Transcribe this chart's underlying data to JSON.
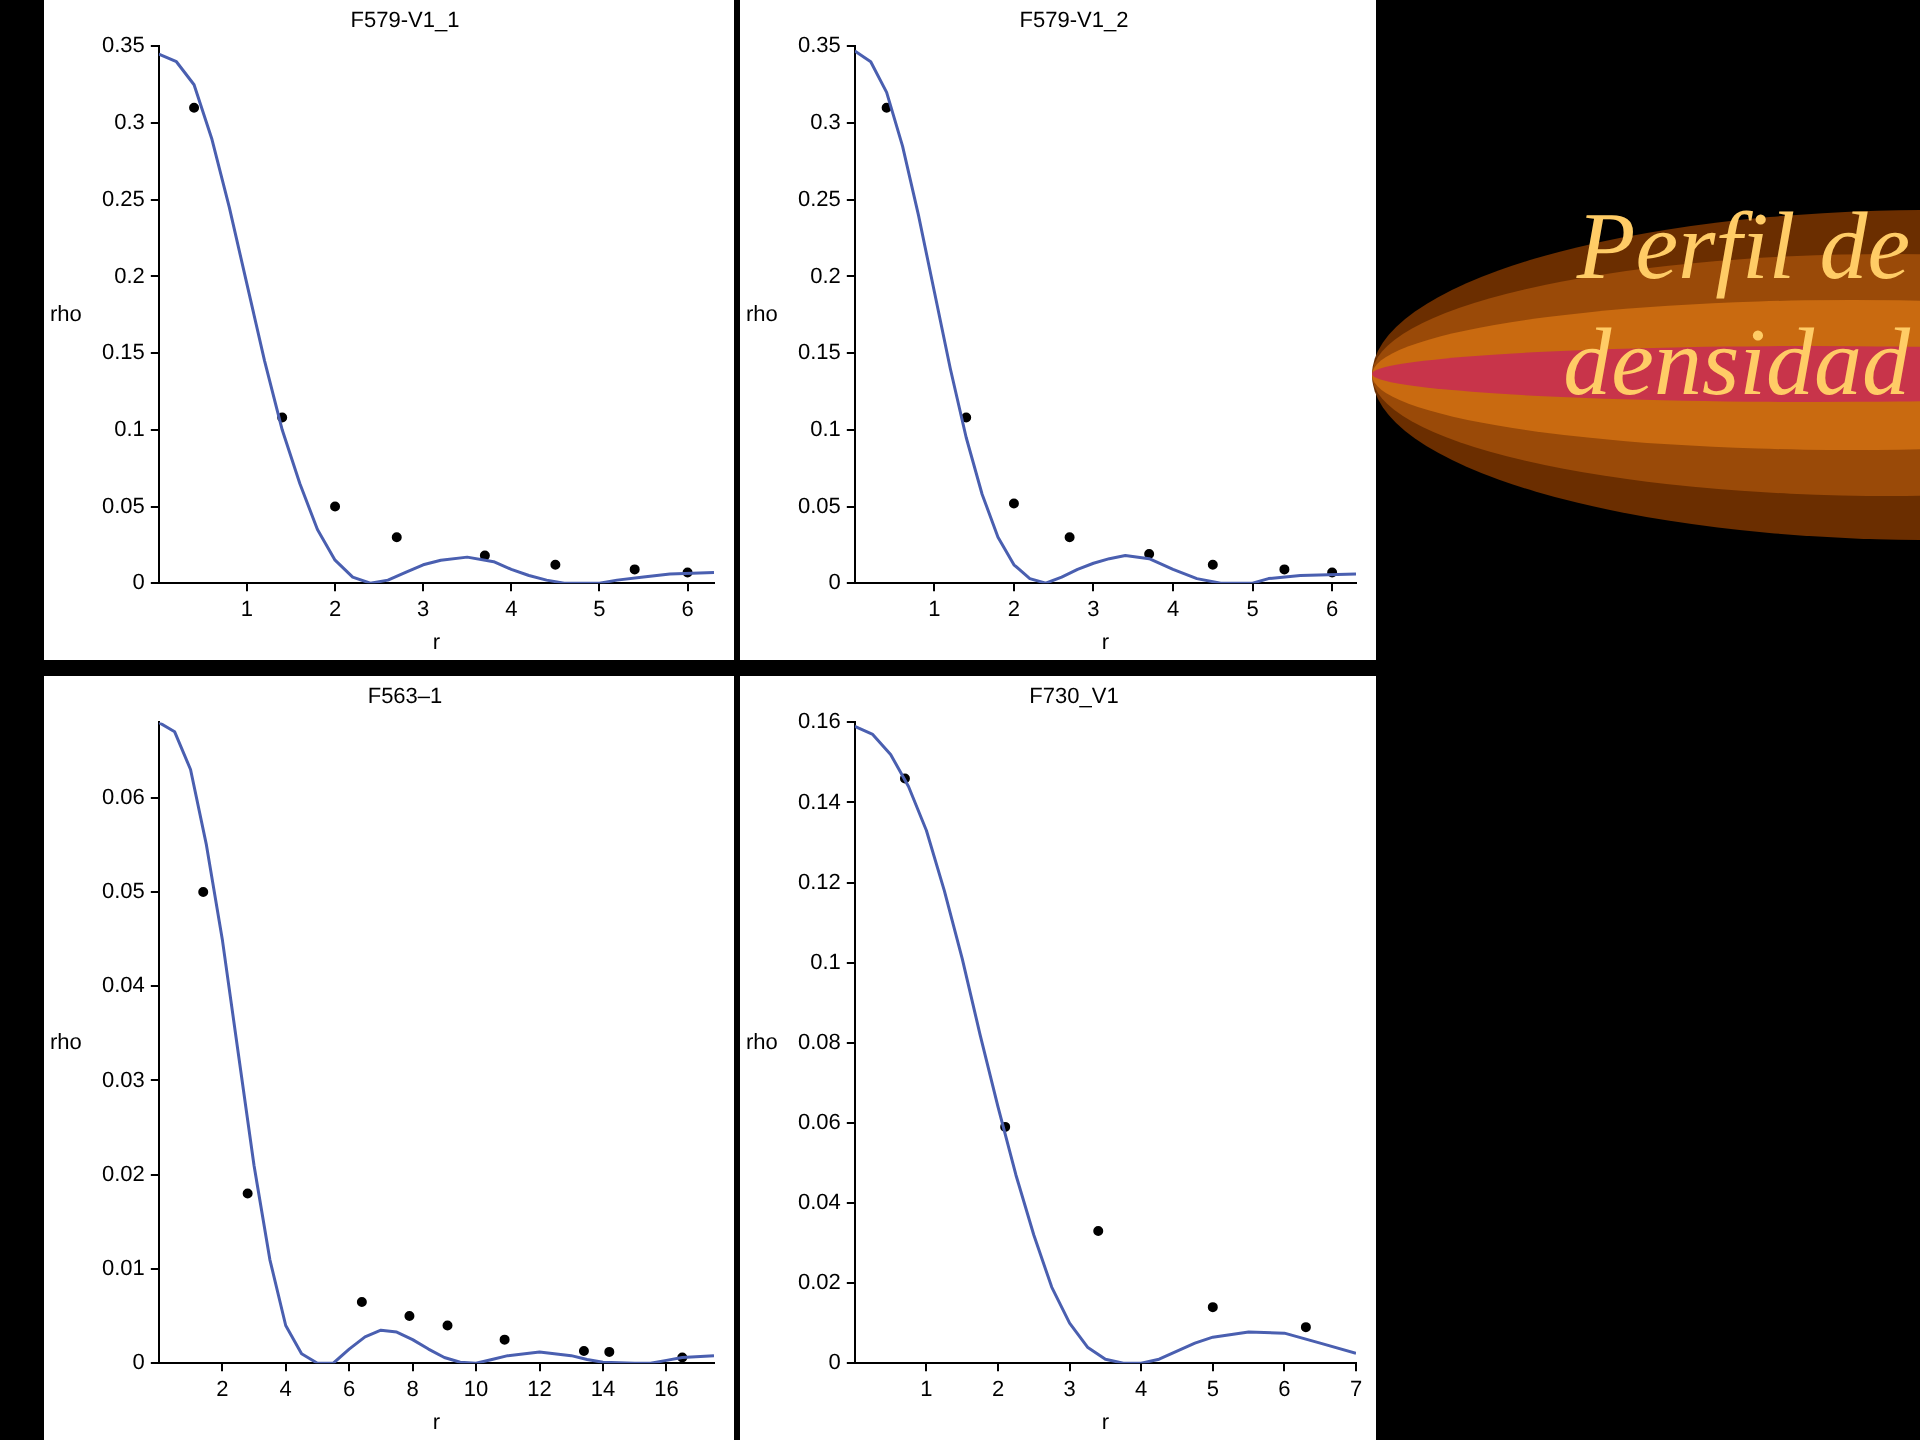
{
  "chart_data": [
    {
      "type": "line",
      "title": "F579-V1_1",
      "xlabel": "r",
      "ylabel": "rho",
      "xlim": [
        0,
        6.3
      ],
      "ylim": [
        0,
        0.35
      ],
      "xticks": [
        1,
        2,
        3,
        4,
        5,
        6
      ],
      "yticks": [
        0,
        0.05,
        0.1,
        0.15,
        0.2,
        0.25,
        0.3,
        0.35
      ],
      "grid": false,
      "legend": false,
      "annotations": [
        "Perfil de densidad"
      ],
      "series": [
        {
          "color": "#4a5fb0",
          "marker": "none",
          "x": [
            0,
            0.2,
            0.4,
            0.6,
            0.8,
            1.0,
            1.2,
            1.4,
            1.6,
            1.8,
            2.0,
            2.2,
            2.4,
            2.6,
            2.8,
            3.0,
            3.2,
            3.5,
            3.8,
            4.0,
            4.2,
            4.4,
            4.6,
            5.0,
            5.2,
            5.5,
            5.8,
            6.3
          ],
          "values": [
            0.345,
            0.34,
            0.325,
            0.29,
            0.245,
            0.195,
            0.145,
            0.1,
            0.065,
            0.035,
            0.015,
            0.004,
            0.0,
            0.002,
            0.007,
            0.012,
            0.015,
            0.017,
            0.014,
            0.009,
            0.005,
            0.002,
            0.0,
            0.0,
            0.002,
            0.004,
            0.006,
            0.007
          ]
        },
        {
          "type": "scatter",
          "color": "#000000",
          "marker": "circle",
          "x": [
            0.4,
            1.4,
            2.0,
            2.7,
            3.7,
            4.5,
            5.4,
            6.0
          ],
          "values": [
            0.31,
            0.108,
            0.05,
            0.03,
            0.018,
            0.012,
            0.009,
            0.007
          ]
        }
      ]
    },
    {
      "type": "line",
      "title": "F579-V1_2",
      "xlabel": "r",
      "ylabel": "rho",
      "xlim": [
        0,
        6.3
      ],
      "ylim": [
        0,
        0.35
      ],
      "xticks": [
        1,
        2,
        3,
        4,
        5,
        6
      ],
      "yticks": [
        0,
        0.05,
        0.1,
        0.15,
        0.2,
        0.25,
        0.3,
        0.35
      ],
      "grid": false,
      "legend": false,
      "series": [
        {
          "color": "#4a5fb0",
          "marker": "none",
          "x": [
            0,
            0.2,
            0.4,
            0.6,
            0.8,
            1.0,
            1.2,
            1.4,
            1.6,
            1.8,
            2.0,
            2.2,
            2.4,
            2.6,
            2.8,
            3.0,
            3.2,
            3.4,
            3.7,
            4.0,
            4.3,
            4.6,
            5.0,
            5.2,
            5.6,
            6.3
          ],
          "values": [
            0.347,
            0.34,
            0.32,
            0.285,
            0.24,
            0.19,
            0.14,
            0.095,
            0.058,
            0.03,
            0.012,
            0.003,
            0.0,
            0.004,
            0.009,
            0.013,
            0.016,
            0.018,
            0.016,
            0.009,
            0.003,
            0.0,
            0.0,
            0.003,
            0.005,
            0.006
          ]
        },
        {
          "type": "scatter",
          "color": "#000000",
          "marker": "circle",
          "x": [
            0.4,
            1.4,
            2.0,
            2.7,
            3.7,
            4.5,
            5.4,
            6.0
          ],
          "values": [
            0.31,
            0.108,
            0.052,
            0.03,
            0.019,
            0.012,
            0.009,
            0.007
          ]
        }
      ]
    },
    {
      "type": "line",
      "title": "F563–1",
      "xlabel": "r",
      "ylabel": "rho",
      "xlim": [
        0,
        17.5
      ],
      "ylim": [
        0,
        0.068
      ],
      "xticks": [
        2,
        4,
        6,
        8,
        10,
        12,
        14,
        16
      ],
      "yticks": [
        0,
        0.01,
        0.02,
        0.03,
        0.04,
        0.05,
        0.06
      ],
      "grid": false,
      "legend": false,
      "series": [
        {
          "color": "#4a5fb0",
          "marker": "none",
          "x": [
            0,
            0.5,
            1,
            1.5,
            2,
            2.5,
            3,
            3.5,
            4,
            4.5,
            5,
            5.5,
            6,
            6.5,
            7,
            7.5,
            8,
            8.5,
            9,
            9.5,
            10,
            10.5,
            11,
            12,
            13,
            13.5,
            14,
            15,
            15.5,
            16,
            16.5,
            17.5
          ],
          "values": [
            0.068,
            0.067,
            0.063,
            0.055,
            0.045,
            0.033,
            0.021,
            0.011,
            0.004,
            0.001,
            0,
            0,
            0.0015,
            0.0028,
            0.0035,
            0.0033,
            0.0025,
            0.0015,
            0.0006,
            0.0001,
            0,
            0.0004,
            0.0008,
            0.0012,
            0.0008,
            0.0004,
            0.0001,
            0,
            0,
            0.0003,
            0.0006,
            0.0008
          ]
        },
        {
          "type": "scatter",
          "color": "#000000",
          "marker": "circle",
          "x": [
            1.4,
            2.8,
            6.4,
            7.9,
            9.1,
            10.9,
            13.4,
            14.2,
            16.5
          ],
          "values": [
            0.05,
            0.018,
            0.0065,
            0.005,
            0.004,
            0.0025,
            0.0013,
            0.0012,
            0.0006
          ]
        }
      ]
    },
    {
      "type": "line",
      "title": "F730_V1",
      "xlabel": "r",
      "ylabel": "rho",
      "xlim": [
        0,
        7
      ],
      "ylim": [
        0,
        0.16
      ],
      "xticks": [
        1,
        2,
        3,
        4,
        5,
        6,
        7
      ],
      "yticks": [
        0,
        0.02,
        0.04,
        0.06,
        0.08,
        0.1,
        0.12,
        0.14,
        0.16
      ],
      "grid": false,
      "legend": false,
      "series": [
        {
          "color": "#4a5fb0",
          "marker": "none",
          "x": [
            0,
            0.25,
            0.5,
            0.75,
            1.0,
            1.25,
            1.5,
            1.75,
            2.0,
            2.25,
            2.5,
            2.75,
            3.0,
            3.25,
            3.5,
            3.75,
            4.0,
            4.25,
            4.5,
            4.75,
            5.0,
            5.5,
            6.0,
            6.5,
            7.0
          ],
          "values": [
            0.159,
            0.157,
            0.152,
            0.144,
            0.133,
            0.118,
            0.101,
            0.082,
            0.064,
            0.047,
            0.032,
            0.019,
            0.01,
            0.004,
            0.001,
            0.0,
            0.0,
            0.001,
            0.003,
            0.005,
            0.0065,
            0.0078,
            0.0075,
            0.005,
            0.0025
          ]
        },
        {
          "type": "scatter",
          "color": "#000000",
          "marker": "circle",
          "x": [
            0.7,
            2.1,
            3.4,
            5.0,
            6.3
          ],
          "values": [
            0.146,
            0.059,
            0.033,
            0.014,
            0.009
          ]
        }
      ]
    }
  ]
}
